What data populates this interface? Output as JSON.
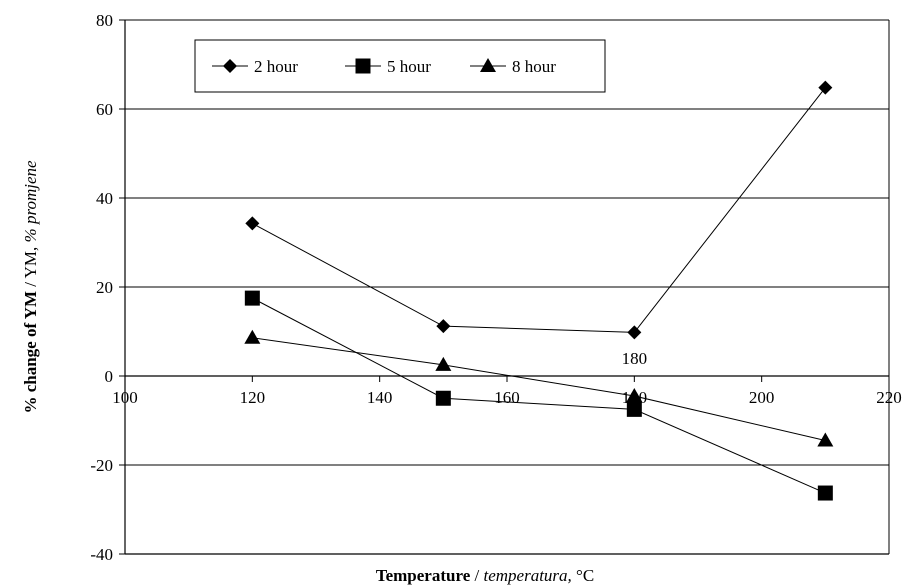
{
  "chart_data": {
    "type": "line",
    "title": "",
    "xlabel": {
      "bold": "Temperature",
      "rest": " / ",
      "italic": "temperatura,",
      "unit": " °C"
    },
    "ylabel": {
      "bold": "% change of YM",
      "rest": " / YM, ",
      "italic": "% promjene"
    },
    "xlim": [
      100,
      220
    ],
    "ylim": [
      -40,
      80
    ],
    "x_ticks": [
      100,
      120,
      140,
      160,
      180,
      200,
      220
    ],
    "y_ticks": [
      -40,
      -20,
      0,
      20,
      40,
      60,
      80
    ],
    "grid": "horizontal",
    "legend_position": "top-left",
    "x": [
      120,
      150,
      180,
      210
    ],
    "series": [
      {
        "name": "2 hour",
        "marker": "diamond",
        "values": [
          34.3,
          11.2,
          9.8,
          64.8
        ]
      },
      {
        "name": "5 hour",
        "marker": "square",
        "values": [
          17.5,
          -5.0,
          -7.5,
          -26.3
        ]
      },
      {
        "name": "8 hour",
        "marker": "triangle",
        "values": [
          8.6,
          2.5,
          -4.5,
          -14.5
        ]
      }
    ],
    "annotations": [
      {
        "text": "180",
        "x": 180,
        "y": 4
      }
    ]
  }
}
